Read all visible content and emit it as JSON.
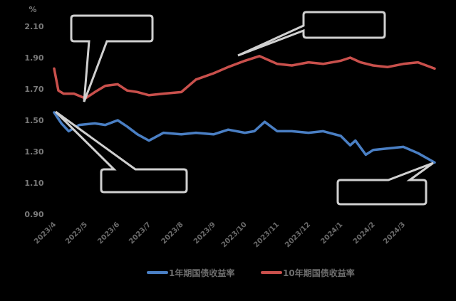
{
  "chart_data": {
    "type": "line",
    "title": "",
    "xlabel": "",
    "ylabel": "%",
    "ylim": [
      0.9,
      2.1
    ],
    "yticks": [
      "2.10",
      "1.90",
      "1.70",
      "1.50",
      "1.30",
      "1.10",
      "0.90"
    ],
    "xticks": [
      "2023/4",
      "2023/5",
      "2023/6",
      "2023/7",
      "2023/8",
      "2023/9",
      "2023/10",
      "2023/11",
      "2023/12",
      "2024/1",
      "2024/2",
      "2024/3"
    ],
    "grid": false,
    "legend_position": "bottom",
    "series": [
      {
        "name": "1年期国债收益率",
        "color": "#4a7fc4",
        "x": [
          "2023/4/1",
          "2023/4/8",
          "2023/4/15",
          "2023/4/25",
          "2023/5/10",
          "2023/5/20",
          "2023/6/1",
          "2023/6/10",
          "2023/6/20",
          "2023/7/1",
          "2023/7/15",
          "2023/8/1",
          "2023/8/15",
          "2023/9/1",
          "2023/9/15",
          "2023/10/1",
          "2023/10/10",
          "2023/10/20",
          "2023/11/1",
          "2023/11/15",
          "2023/12/1",
          "2023/12/15",
          "2024/1/1",
          "2024/1/10",
          "2024/1/15",
          "2024/1/25",
          "2024/2/1",
          "2024/2/15",
          "2024/3/1",
          "2024/3/15",
          "2024/3/31"
        ],
        "values": [
          1.55,
          1.48,
          1.43,
          1.47,
          1.48,
          1.47,
          1.5,
          1.46,
          1.41,
          1.37,
          1.42,
          1.41,
          1.42,
          1.41,
          1.44,
          1.42,
          1.43,
          1.49,
          1.43,
          1.43,
          1.42,
          1.43,
          1.4,
          1.34,
          1.37,
          1.28,
          1.31,
          1.32,
          1.33,
          1.29,
          1.23
        ]
      },
      {
        "name": "10年期国债收益率",
        "color": "#c9504c",
        "x": [
          "2023/4/1",
          "2023/4/5",
          "2023/4/10",
          "2023/4/20",
          "2023/5/1",
          "2023/5/10",
          "2023/5/20",
          "2023/6/1",
          "2023/6/10",
          "2023/6/20",
          "2023/7/1",
          "2023/7/15",
          "2023/8/1",
          "2023/8/15",
          "2023/9/1",
          "2023/9/15",
          "2023/10/1",
          "2023/10/15",
          "2023/11/1",
          "2023/11/15",
          "2023/12/1",
          "2023/12/15",
          "2024/1/1",
          "2024/1/10",
          "2024/1/20",
          "2024/2/1",
          "2024/2/15",
          "2024/3/1",
          "2024/3/15",
          "2024/3/31"
        ],
        "values": [
          1.83,
          1.69,
          1.67,
          1.67,
          1.64,
          1.68,
          1.72,
          1.73,
          1.69,
          1.68,
          1.66,
          1.67,
          1.68,
          1.76,
          1.8,
          1.84,
          1.88,
          1.91,
          1.86,
          1.85,
          1.87,
          1.86,
          1.88,
          1.9,
          1.87,
          1.85,
          1.84,
          1.86,
          1.87,
          1.83
        ]
      }
    ],
    "annotations": [
      {
        "shape": "callout",
        "text": "",
        "points_to": "10年期 low ~2023/5"
      },
      {
        "shape": "callout",
        "text": "",
        "points_to": "10年期 peak ~2023/9"
      },
      {
        "shape": "callout",
        "text": "",
        "points_to": "1年期 start 2023/4"
      },
      {
        "shape": "callout",
        "text": "",
        "points_to": "1年期 end 2024/3"
      }
    ]
  },
  "axis": {
    "unit_label": "%"
  },
  "legend": {
    "items": [
      {
        "label": "1年期国债收益率",
        "color": "#4a7fc4"
      },
      {
        "label": "10年期国债收益率",
        "color": "#c9504c"
      }
    ]
  }
}
